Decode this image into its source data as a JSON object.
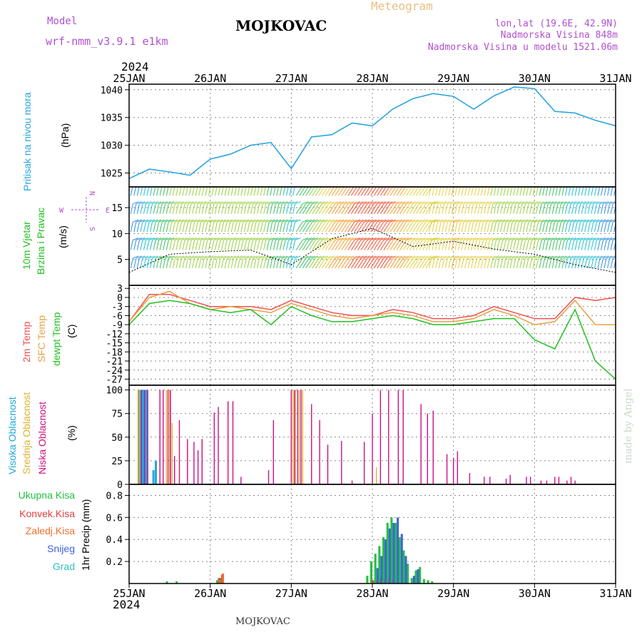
{
  "header": {
    "model_label": "Model",
    "model_name": "wrf-nmm_v3.9.1  e1km",
    "station": "MOJKOVAC",
    "meteogram": "Meteogram",
    "lonlat": "lon,lat (19.6E, 42.9N)",
    "height": "Nadmorska Visina 848m",
    "model_height": "Nadmorska Visina u modelu 1521.06m",
    "footer_station": "MOJKOVAC",
    "credit": "made by Angel",
    "year_top": "2024",
    "year_bottom": "2024"
  },
  "colors": {
    "pressure": "#2aa5e0",
    "temp2m": "#f05050",
    "sfc": "#e8a040",
    "dew": "#20c020",
    "high": "#20a8e0",
    "mid": "#e0b030",
    "low": "#cc1080",
    "total": "#20c040",
    "conv": "#e04040",
    "frz": "#f07030",
    "snow": "#4060e0",
    "grad": "#30c0c0",
    "model_text": "#b050d0"
  },
  "chart_data": [
    {
      "type": "line",
      "id": "pressure",
      "ylabel": "Pritisak na nivou mora",
      "unit": "(hPa)",
      "x_ticks": [
        "25JAN",
        "26JAN",
        "27JAN",
        "28JAN",
        "29JAN",
        "30JAN",
        "31JAN"
      ],
      "ylim": [
        1022.5,
        1041
      ],
      "yticks": [
        1025,
        1030,
        1035,
        1040
      ],
      "x": [
        0,
        0.25,
        0.5,
        0.75,
        1,
        1.25,
        1.5,
        1.75,
        2,
        2.25,
        2.5,
        2.75,
        3,
        3.25,
        3.5,
        3.75,
        4,
        4.25,
        4.5,
        4.75,
        5,
        5.25,
        5.5,
        5.75,
        6
      ],
      "series": [
        {
          "values": [
            1024.0,
            1025.7,
            1025.2,
            1024.6,
            1027.5,
            1028.4,
            1030.0,
            1030.5,
            1025.8,
            1031.5,
            1031.9,
            1034.0,
            1033.5,
            1036.5,
            1038.4,
            1039.3,
            1038.8,
            1036.5,
            1038.9,
            1040.5,
            1040.2,
            1036.1,
            1035.8,
            1034.5,
            1033.5
          ]
        }
      ]
    },
    {
      "type": "line",
      "id": "wind",
      "ylabel": "10m Vjetar Brzina i Pravac",
      "unit": "(m/s)",
      "compass": [
        "N",
        "E",
        "S",
        "W"
      ],
      "ylim": [
        0,
        19
      ],
      "yticks": [
        5,
        10,
        15
      ],
      "x": [
        0,
        0.5,
        1,
        1.5,
        2,
        2.5,
        3,
        3.5,
        4,
        4.5,
        5,
        5.5,
        6
      ],
      "series": [
        {
          "name": "speed",
          "values": [
            2.5,
            6.0,
            6.5,
            6.8,
            4.0,
            9.0,
            11.0,
            7.5,
            8.5,
            7.0,
            6.0,
            4.0,
            2.5
          ]
        }
      ]
    },
    {
      "type": "line",
      "id": "temperature",
      "ylabel": "(C)",
      "yticks": [
        3,
        0,
        -3,
        -6,
        -9,
        -12,
        -15,
        -18,
        -21,
        -24,
        -27
      ],
      "ylim": [
        -29,
        4
      ],
      "x": [
        0,
        0.25,
        0.5,
        0.75,
        1,
        1.25,
        1.5,
        1.75,
        2,
        2.25,
        2.5,
        2.75,
        3,
        3.25,
        3.5,
        3.75,
        4,
        4.25,
        4.5,
        4.75,
        5,
        5.25,
        5.5,
        5.75,
        6
      ],
      "series": [
        {
          "name": "2m Temp",
          "values": [
            -8,
            1,
            1,
            -1,
            -3,
            -3,
            -3,
            -4,
            -1,
            -3,
            -5,
            -6,
            -6,
            -4,
            -5,
            -7,
            -7,
            -6,
            -3,
            -5,
            -7,
            -7,
            0,
            -1,
            0
          ]
        },
        {
          "name": "SFC Temp",
          "values": [
            -8,
            0,
            2,
            -2,
            -4,
            -3,
            -4,
            -5,
            -2,
            -4,
            -6,
            -7,
            -6,
            -5,
            -6,
            -8,
            -8,
            -7,
            -4,
            -6,
            -9,
            -8,
            -1,
            -9,
            -9
          ]
        },
        {
          "name": "dewpt Temp",
          "values": [
            -9,
            -2,
            -1,
            -2,
            -4,
            -5,
            -4,
            -9,
            -3,
            -6,
            -8,
            -8,
            -7,
            -6,
            -7,
            -9,
            -9,
            -8,
            -7,
            -7,
            -14,
            -17,
            -4,
            -21,
            -27
          ]
        }
      ]
    },
    {
      "type": "bar",
      "id": "clouds",
      "ylabel": "(%)",
      "ylim": [
        0,
        105
      ],
      "yticks": [
        0,
        25,
        50,
        75,
        100
      ],
      "series": [
        {
          "name": "Visoka Oblacnost",
          "x": [
            0.12,
            0.14,
            0.16,
            0.18,
            0.2,
            0.22,
            0.3,
            0.33
          ],
          "values": [
            100,
            100,
            100,
            100,
            100,
            100,
            15,
            25
          ]
        },
        {
          "name": "Srednja Oblacnost",
          "x": [
            0.11,
            0.13,
            0.46,
            0.5,
            0.53,
            2.02,
            2.05,
            2.1,
            2.14,
            3.05
          ],
          "values": [
            100,
            100,
            100,
            100,
            65,
            100,
            100,
            100,
            100,
            18
          ]
        },
        {
          "name": "Niska Oblacnost",
          "x": [
            0.15,
            0.19,
            0.23,
            0.38,
            0.42,
            0.48,
            0.51,
            0.56,
            0.62,
            0.72,
            0.8,
            0.85,
            0.9,
            1.05,
            1.1,
            1.22,
            1.28,
            1.38,
            1.72,
            1.78,
            2.0,
            2.04,
            2.08,
            2.12,
            2.25,
            2.35,
            2.45,
            2.62,
            2.75,
            2.9,
            3.0,
            3.1,
            3.2,
            3.32,
            3.38,
            3.6,
            3.68,
            3.75,
            3.92,
            4.0,
            4.05,
            4.2,
            4.38,
            4.45,
            4.65,
            4.7,
            4.9,
            4.95,
            5.08,
            5.15,
            5.25,
            5.3,
            5.4,
            5.45,
            5.5
          ],
          "values": [
            100,
            100,
            100,
            100,
            100,
            100,
            100,
            30,
            68,
            48,
            45,
            36,
            48,
            76,
            82,
            88,
            88,
            8,
            15,
            68,
            100,
            100,
            100,
            100,
            85,
            68,
            42,
            46,
            4,
            45,
            75,
            100,
            100,
            100,
            100,
            85,
            75,
            78,
            32,
            28,
            35,
            12,
            8,
            8,
            6,
            10,
            8,
            8,
            4,
            4,
            8,
            8,
            4,
            8,
            4
          ]
        }
      ]
    },
    {
      "type": "bar",
      "id": "precip",
      "ylabel": "1hr Precip (mm)",
      "ylim": [
        0,
        0.9
      ],
      "yticks": [
        0.2,
        0.4,
        0.6,
        0.8
      ],
      "x": [
        0.48,
        0.6,
        1.1,
        1.14,
        2.95,
        3.0,
        3.05,
        3.1,
        3.15,
        3.2,
        3.25,
        3.3,
        3.35,
        3.4,
        3.45,
        3.5,
        3.55,
        3.6,
        3.65,
        3.7,
        3.75
      ],
      "series": [
        {
          "name": "Ukupna Kisa",
          "values": [
            0.02,
            0.02,
            0.03,
            0.05,
            0.07,
            0.2,
            0.27,
            0.34,
            0.42,
            0.55,
            0.6,
            0.55,
            0.42,
            0.3,
            0.18,
            0.05,
            0.12,
            0.15,
            0.04,
            0.03,
            0.02
          ]
        },
        {
          "name": "Konvek.Kisa",
          "values": [
            0,
            0,
            0.05,
            0.08,
            0,
            0.03,
            0.02,
            0.05,
            0.04,
            0.05,
            0.04,
            0,
            0,
            0,
            0,
            0,
            0,
            0,
            0,
            0,
            0
          ]
        },
        {
          "name": "Zaledj.Kisa",
          "values": [
            0,
            0,
            0.03,
            0.09,
            0,
            0,
            0,
            0,
            0,
            0,
            0,
            0,
            0,
            0,
            0,
            0,
            0,
            0,
            0,
            0,
            0
          ]
        },
        {
          "name": "Snijeg",
          "values": [
            0,
            0,
            0,
            0,
            0,
            0,
            0.14,
            0.25,
            0.4,
            0.5,
            0.55,
            0.6,
            0.45,
            0.25,
            0,
            0.07,
            0.13,
            0,
            0,
            0,
            0
          ]
        },
        {
          "name": "Grad",
          "values": [
            0,
            0,
            0,
            0,
            0,
            0,
            0,
            0,
            0,
            0,
            0,
            0,
            0,
            0,
            0,
            0,
            0,
            0,
            0,
            0,
            0
          ]
        }
      ]
    }
  ],
  "labels": {
    "pressure_y": "Pritisak na nivou mora",
    "pressure_unit": "(hPa)",
    "wind_y1": "10m Vjetar",
    "wind_y2": "Brzina i Pravac",
    "wind_unit": "(m/s)",
    "compass_n": "N",
    "compass_e": "E",
    "compass_w": "W",
    "compass_s": "S",
    "t2m": "2m Temp",
    "sfc": "SFC Temp",
    "dew": "dewpt Temp",
    "temp_unit": "(C)",
    "high": "Visoka Oblacnost",
    "mid": "Srednja Oblacnost",
    "low": "Niska Oblacnost",
    "cloud_unit": "(%)",
    "rain": "Ukupna Kisa",
    "conv": "Konvek.Kisa",
    "frz": "Zaledj.Kisa",
    "snow": "Snijeg",
    "grad": "Grad",
    "precip_unit": "1hr Precip (mm)"
  }
}
